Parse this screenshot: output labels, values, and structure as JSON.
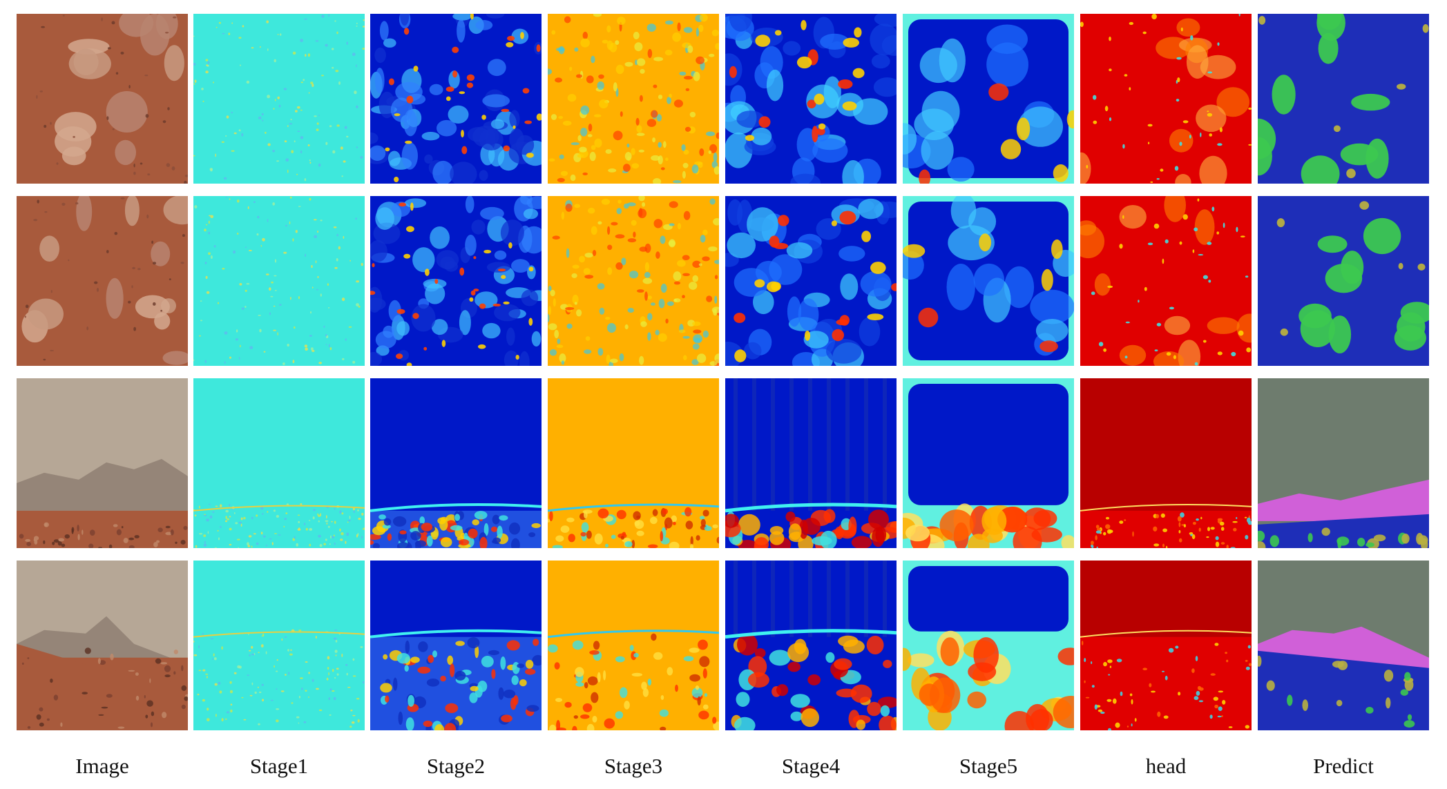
{
  "columns": [
    "Image",
    "Stage1",
    "Stage2",
    "Stage3",
    "Stage4",
    "Stage5",
    "head",
    "Predict"
  ],
  "rows": 4,
  "palette": {
    "terrain": "#a85a3c",
    "sky": "#b6a796",
    "jet_low": "#0018c8",
    "jet_mid": "#3ee8dc",
    "jet_high": "#ffb000",
    "jet_max": "#e00000",
    "seg_soil": "#1e2eb8",
    "seg_rock": "#3cc850",
    "seg_sand": "#b8b040",
    "seg_sky": "#6e7c6e",
    "seg_mountain": "#d060d8"
  }
}
